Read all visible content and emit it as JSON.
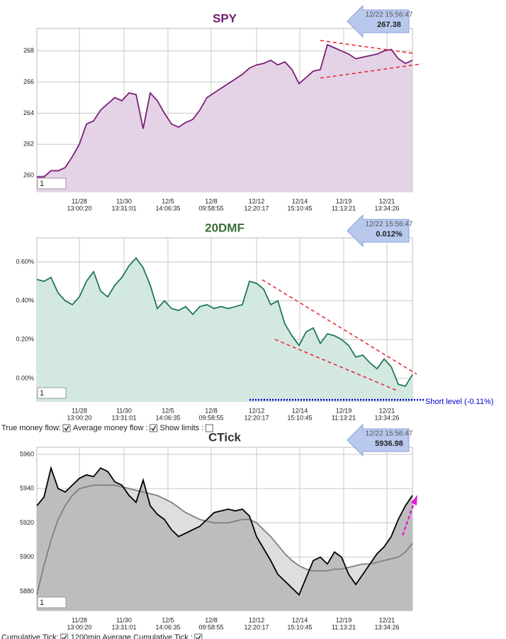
{
  "chart_data": [
    {
      "type": "area",
      "title": "SPY",
      "color": "#7a1f7a",
      "fill": "#e4d3e6",
      "values": [
        259.9,
        259.9,
        260.3,
        260.3,
        260.5,
        261.2,
        262,
        263.3,
        263.5,
        264.2,
        264.6,
        265,
        264.8,
        265.3,
        265.2,
        263,
        265.3,
        264.8,
        264,
        263.3,
        263.1,
        263.4,
        263.6,
        264.2,
        265,
        265.3,
        265.6,
        265.9,
        266.2,
        266.5,
        266.9,
        267.1,
        267.2,
        267.4,
        267.1,
        267.3,
        266.8,
        265.9,
        266.3,
        266.7,
        266.8,
        268.4,
        268.2,
        268,
        267.8,
        267.5,
        267.6,
        267.7,
        267.8,
        268,
        268.1,
        267.5,
        267.2,
        267.4
      ],
      "xlim": [
        0,
        53
      ],
      "ylim": [
        258.95,
        269.45
      ],
      "yticks": [
        260,
        262,
        264,
        266,
        268
      ],
      "xticks": [
        {
          "value": 6,
          "label": "11/28",
          "time": "13:00:20"
        },
        {
          "value": 12.3,
          "label": "11/30",
          "time": "13:31:01"
        },
        {
          "value": 18.5,
          "label": "12/5",
          "time": "14:06:35"
        },
        {
          "value": 24.6,
          "label": "12/8",
          "time": "09:58:55"
        },
        {
          "value": 31,
          "label": "12/12",
          "time": "12:20:17"
        },
        {
          "value": 37.1,
          "label": "12/14",
          "time": "15:10:45"
        },
        {
          "value": 43.3,
          "label": "12/19",
          "time": "11:13:21"
        },
        {
          "value": 49.4,
          "label": "12/21",
          "time": "13:34:26"
        }
      ],
      "grid": true,
      "input": "1",
      "last": {
        "time": "12/22 15:56:47",
        "value": 267.38
      }
    },
    {
      "type": "area",
      "title": "20DMF",
      "color": "#1f7a58",
      "fill": "#d3e8e1",
      "values": [
        0.51,
        0.5,
        0.52,
        0.44,
        0.4,
        0.38,
        0.42,
        0.5,
        0.55,
        0.45,
        0.42,
        0.48,
        0.52,
        0.58,
        0.62,
        0.57,
        0.48,
        0.36,
        0.4,
        0.36,
        0.35,
        0.37,
        0.33,
        0.37,
        0.38,
        0.36,
        0.37,
        0.36,
        0.37,
        0.38,
        0.5,
        0.49,
        0.46,
        0.38,
        0.4,
        0.28,
        0.22,
        0.17,
        0.24,
        0.26,
        0.18,
        0.23,
        0.22,
        0.2,
        0.17,
        0.11,
        0.12,
        0.08,
        0.05,
        0.1,
        0.06,
        -0.03,
        -0.04,
        0.02
      ],
      "xlim": [
        0,
        53
      ],
      "ylim": [
        -0.117,
        0.724
      ],
      "yticks": [
        {
          "value": 0,
          "label": "0.00%"
        },
        {
          "value": 0.2,
          "label": "0.20%"
        },
        {
          "value": 0.4,
          "label": "0.40%"
        },
        {
          "value": 0.6,
          "label": "0.60%"
        }
      ],
      "xticks": [
        {
          "value": 6,
          "label": "11/28",
          "time": "13:00:20"
        },
        {
          "value": 12.3,
          "label": "11/30",
          "time": "13:31:01"
        },
        {
          "value": 18.5,
          "label": "12/5",
          "time": "14:06:35"
        },
        {
          "value": 24.6,
          "label": "12/8",
          "time": "09:58:55"
        },
        {
          "value": 31,
          "label": "12/12",
          "time": "12:20:17"
        },
        {
          "value": 37.1,
          "label": "12/14",
          "time": "15:10:45"
        },
        {
          "value": 43.3,
          "label": "12/19",
          "time": "11:13:21"
        },
        {
          "value": 49.4,
          "label": "12/21",
          "time": "13:34:26"
        }
      ],
      "grid": true,
      "input": "1",
      "last": {
        "time": "12/22 15:56:47",
        "value": 0.012,
        "label": "0.012%"
      },
      "annotation": {
        "text": "Short level (-0.11%)",
        "value": -0.11,
        "color": "#0000cc"
      },
      "controls": [
        {
          "label": "True money flow:",
          "checked": true
        },
        {
          "label": "Average money flow :",
          "checked": true
        },
        {
          "label": "Show limits :",
          "checked": false
        }
      ]
    },
    {
      "type": "area",
      "title": "CTick",
      "series": [
        {
          "color": "#000000",
          "fill": "#bdbdbd",
          "values": [
            5930,
            5935,
            5952,
            5940,
            5938,
            5942,
            5946,
            5948,
            5947,
            5952,
            5950,
            5944,
            5942,
            5936,
            5932,
            5945,
            5930,
            5925,
            5922,
            5916,
            5912,
            5914,
            5916,
            5918,
            5922,
            5926,
            5927,
            5928,
            5927,
            5928,
            5924,
            5912,
            5905,
            5898,
            5890,
            5886,
            5882,
            5878,
            5888,
            5898,
            5900,
            5896,
            5903,
            5900,
            5890,
            5884,
            5890,
            5896,
            5902,
            5906,
            5912,
            5922,
            5930,
            5936
          ]
        },
        {
          "color": "#808080",
          "fill": "#dedede",
          "values": [
            5878,
            5895,
            5910,
            5922,
            5930,
            5936,
            5940,
            5941,
            5942,
            5942,
            5942,
            5942,
            5941,
            5940,
            5939,
            5938,
            5937,
            5936,
            5934,
            5932,
            5929,
            5926,
            5924,
            5922,
            5921,
            5920,
            5920,
            5920,
            5921,
            5922,
            5922,
            5920,
            5916,
            5912,
            5907,
            5902,
            5898,
            5895,
            5893,
            5892,
            5892,
            5892,
            5893,
            5893,
            5894,
            5895,
            5896,
            5896,
            5897,
            5898,
            5899,
            5900,
            5903,
            5908
          ]
        }
      ],
      "xlim": [
        0,
        53
      ],
      "ylim": [
        5868.8,
        5964.1
      ],
      "yticks": [
        5880,
        5900,
        5920,
        5940,
        5960
      ],
      "xticks": [
        {
          "value": 6,
          "label": "11/28",
          "time": "13:00:20"
        },
        {
          "value": 12.3,
          "label": "11/30",
          "time": "13:31:01"
        },
        {
          "value": 18.5,
          "label": "12/5",
          "time": "14:06:35"
        },
        {
          "value": 24.6,
          "label": "12/8",
          "time": "09:58:55"
        },
        {
          "value": 31,
          "label": "12/12",
          "time": "12:20:17"
        },
        {
          "value": 37.1,
          "label": "12/14",
          "time": "15:10:45"
        },
        {
          "value": 43.3,
          "label": "12/19",
          "time": "11:13:21"
        },
        {
          "value": 49.4,
          "label": "12/21",
          "time": "13:34:26"
        }
      ],
      "grid": true,
      "input": "1",
      "last": {
        "time": "12/22 15:56:47",
        "value": 5936.98
      },
      "controls": [
        {
          "label": "Cumulative Tick:",
          "checked": true
        },
        {
          "label": "1200min Average Cumulative Tick :",
          "checked": true
        }
      ]
    }
  ]
}
